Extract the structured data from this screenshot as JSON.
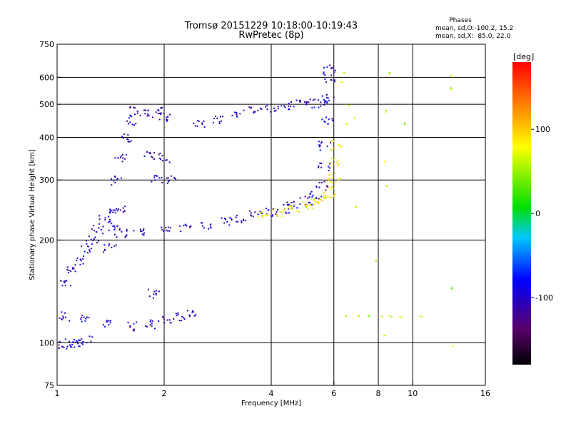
{
  "chart_data": {
    "type": "scatter",
    "title": "Tromsø 20151229 10:18:00-10:19:43",
    "subtitle": "RwPretec (8p)",
    "stats": {
      "heading": "Phases",
      "line_o": "mean, sd,O:-100.2, 15.2",
      "line_x": "mean, sd,X:  85.0, 22.0"
    },
    "xlabel": "Frequency [MHz]",
    "ylabel": "Stationary phase Virtual Height [km]",
    "x_scale": "log",
    "y_scale": "log",
    "xlim": [
      1,
      16
    ],
    "ylim": [
      75,
      750
    ],
    "x_ticks": [
      1,
      2,
      4,
      6,
      8,
      10,
      16
    ],
    "x_tick_labels": [
      "1",
      "2",
      "4",
      "6",
      "8",
      "10",
      "16"
    ],
    "y_ticks": [
      75,
      100,
      200,
      300,
      400,
      500,
      600,
      750
    ],
    "y_tick_labels": [
      "75",
      "100",
      "200",
      "300",
      "400",
      "500",
      "600",
      "750"
    ],
    "x_grid": [
      2,
      4,
      6,
      8,
      10
    ],
    "y_grid": [
      100,
      200,
      300,
      400,
      500,
      600
    ],
    "colorbar": {
      "label": "[deg]",
      "range": [
        -180,
        180
      ],
      "ticks": [
        100,
        0,
        -100
      ],
      "tick_labels": [
        "100",
        "0",
        "-100"
      ]
    },
    "traces": [
      {
        "id": "o-lower",
        "phase": -100,
        "points": [
          [
            1.5,
            210
          ],
          [
            1.7,
            212
          ],
          [
            2.0,
            215
          ],
          [
            2.3,
            218
          ],
          [
            2.6,
            222
          ],
          [
            3.0,
            228
          ],
          [
            3.3,
            233
          ],
          [
            3.6,
            238
          ],
          [
            4.0,
            243
          ],
          [
            4.3,
            248
          ],
          [
            4.6,
            254
          ],
          [
            5.0,
            262
          ],
          [
            5.3,
            272
          ],
          [
            5.5,
            290
          ],
          [
            5.6,
            330
          ],
          [
            5.65,
            380
          ],
          [
            5.7,
            450
          ],
          [
            5.75,
            520
          ],
          [
            5.8,
            600
          ],
          [
            5.82,
            640
          ]
        ]
      },
      {
        "id": "x-lower",
        "phase": 85,
        "points": [
          [
            3.8,
            238
          ],
          [
            4.2,
            242
          ],
          [
            4.6,
            247
          ],
          [
            5.0,
            253
          ],
          [
            5.3,
            258
          ],
          [
            5.6,
            265
          ],
          [
            5.8,
            275
          ],
          [
            5.95,
            290
          ],
          [
            6.0,
            310
          ],
          [
            6.02,
            340
          ],
          [
            6.05,
            380
          ]
        ]
      },
      {
        "id": "o-upper",
        "phase": -100,
        "points": [
          [
            2.5,
            440
          ],
          [
            2.8,
            455
          ],
          [
            3.2,
            470
          ],
          [
            3.6,
            480
          ],
          [
            4.0,
            490
          ],
          [
            4.4,
            498
          ],
          [
            4.8,
            502
          ],
          [
            5.2,
            505
          ],
          [
            5.6,
            508
          ]
        ]
      },
      {
        "id": "low-layer",
        "phase": -100,
        "points": [
          [
            1.05,
            120
          ],
          [
            1.2,
            118
          ],
          [
            1.4,
            115
          ],
          [
            1.6,
            112
          ],
          [
            1.8,
            114
          ],
          [
            2.0,
            118
          ],
          [
            2.2,
            120
          ],
          [
            2.35,
            122
          ]
        ]
      },
      {
        "id": "bottom-echoes",
        "phase": -100,
        "points": [
          [
            1.02,
            99
          ],
          [
            1.08,
            100
          ],
          [
            1.12,
            100
          ],
          [
            1.2,
            102
          ]
        ]
      },
      {
        "id": "spread-column",
        "phase": -100,
        "points": [
          [
            1.45,
            300
          ],
          [
            1.5,
            350
          ],
          [
            1.55,
            400
          ],
          [
            1.6,
            450
          ],
          [
            1.65,
            480
          ],
          [
            1.5,
            250
          ],
          [
            1.45,
            220
          ],
          [
            1.4,
            190
          ]
        ]
      },
      {
        "id": "left-cloud",
        "phase": -100,
        "points": [
          [
            1.05,
            150
          ],
          [
            1.1,
            165
          ],
          [
            1.15,
            175
          ],
          [
            1.2,
            190
          ],
          [
            1.25,
            200
          ],
          [
            1.3,
            215
          ],
          [
            1.35,
            230
          ],
          [
            1.4,
            245
          ]
        ]
      },
      {
        "id": "mid-blobs",
        "phase": -100,
        "points": [
          [
            1.8,
            470
          ],
          [
            1.9,
            480
          ],
          [
            2.0,
            460
          ],
          [
            1.8,
            355
          ],
          [
            2.0,
            350
          ],
          [
            1.9,
            305
          ],
          [
            2.1,
            302
          ],
          [
            1.85,
            140
          ]
        ]
      },
      {
        "id": "right-scatter",
        "phase": 60,
        "points": [
          [
            6.5,
            120
          ],
          [
            7.0,
            120
          ],
          [
            7.5,
            120
          ],
          [
            8.2,
            120
          ],
          [
            8.6,
            120
          ],
          [
            9.2,
            120
          ],
          [
            10.5,
            120
          ],
          [
            12.8,
            145
          ],
          [
            12.8,
            98
          ],
          [
            6.4,
            620
          ],
          [
            6.3,
            580
          ],
          [
            8.6,
            620
          ],
          [
            8.4,
            480
          ],
          [
            9.4,
            440
          ],
          [
            8.3,
            340
          ],
          [
            8.4,
            290
          ],
          [
            12.8,
            610
          ],
          [
            12.8,
            560
          ],
          [
            6.6,
            500
          ],
          [
            6.8,
            460
          ],
          [
            6.5,
            440
          ],
          [
            7.9,
            175
          ],
          [
            8.3,
            105
          ],
          [
            6.9,
            250
          ]
        ]
      }
    ]
  }
}
